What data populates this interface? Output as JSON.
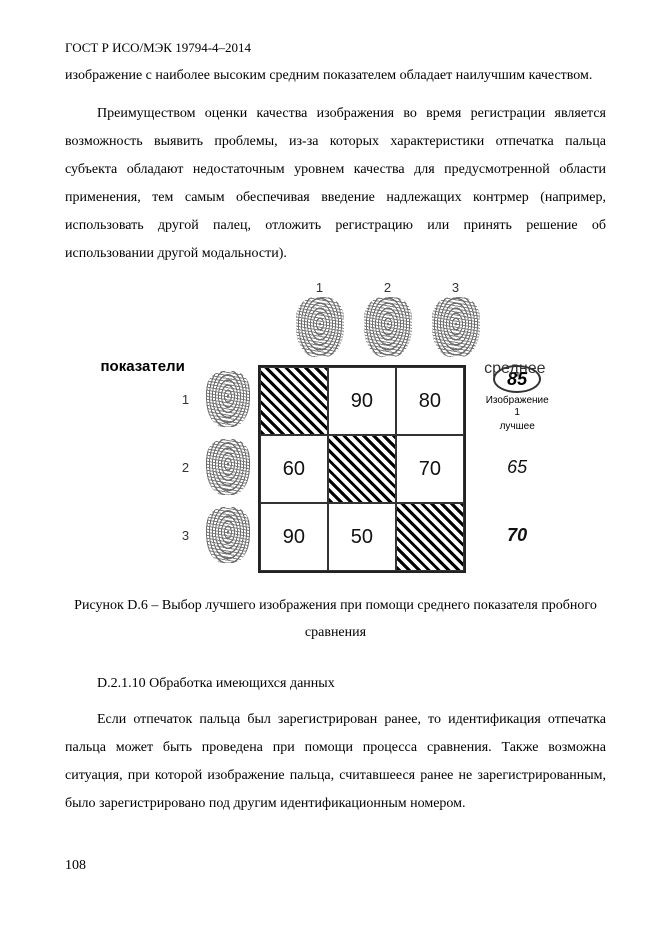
{
  "header": "ГОСТ Р ИСО/МЭК 19794-4–2014",
  "para1": "изображение с наиболее высоким средним показателем обладает наилучшим качеством.",
  "para2": "Преимуществом оценки качества изображения во время регистрации является возможность выявить проблемы, из-за которых характеристики отпечатка пальца субъекта обладают недостаточным уровнем качества для предусмотренной области применения, тем самым обеспечивая введение надлежащих контрмер (например, использовать другой палец, отложить регистрацию или принять решение об использовании другой модальности).",
  "figure": {
    "top_nums": [
      "1",
      "2",
      "3"
    ],
    "side_label": "показатели",
    "avg_label": "среднее",
    "left_nums": [
      "1",
      "2",
      "3"
    ],
    "matrix": [
      [
        "",
        "90",
        "80"
      ],
      [
        "60",
        "",
        "70"
      ],
      [
        "90",
        "50",
        ""
      ]
    ],
    "averages": [
      "85",
      "65",
      "70"
    ],
    "sub1": "Изображение 1",
    "sub2": "лучшее"
  },
  "caption": "Рисунок D.6 – Выбор лучшего изображения при помощи среднего показателя пробного сравнения",
  "section": "D.2.1.10 Обработка имеющихся данных",
  "para3": "Если отпечаток пальца был зарегистрирован ранее, то идентификация отпечатка пальца может быть проведена при помощи процесса сравнения. Также возможна ситуация, при которой изображение пальца, считавшееся ранее не зарегистрированным, было зарегистрировано под другим идентификационным номером.",
  "page_number": "108"
}
